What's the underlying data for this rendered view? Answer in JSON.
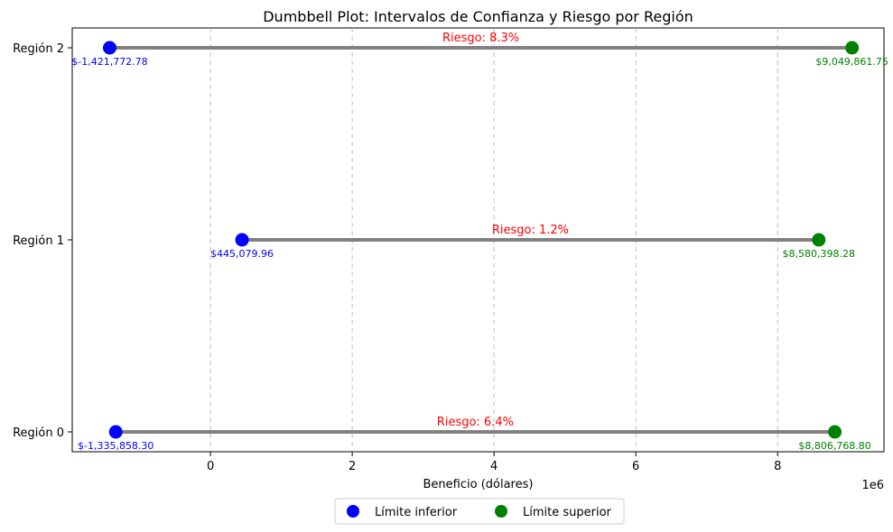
{
  "chart_data": {
    "type": "dumbbell",
    "title": "Dumbbell Plot: Intervalos de Confianza y Riesgo por Región",
    "xlabel": "Beneficio (dólares)",
    "ylabel": "",
    "x_scale_note": "1e6",
    "xlim": [
      -1.95,
      9.5
    ],
    "x_ticks": [
      {
        "value": 0,
        "label": "0"
      },
      {
        "value": 2,
        "label": "2"
      },
      {
        "value": 4,
        "label": "4"
      },
      {
        "value": 6,
        "label": "6"
      },
      {
        "value": 8,
        "label": "8"
      }
    ],
    "grid": "x-dashed",
    "categories": [
      "Región 0",
      "Región 1",
      "Región 2"
    ],
    "rows": [
      {
        "category": "Región 0",
        "lower": -1.3358583,
        "upper": 8.8067688,
        "lower_label": "$-1,335,858.30",
        "upper_label": "$8,806,768.80",
        "risk_label": "Riesgo: 6.4%"
      },
      {
        "category": "Región 1",
        "lower": 0.44507996,
        "upper": 8.58039828,
        "lower_label": "$445,079.96",
        "upper_label": "$8,580,398.28",
        "risk_label": "Riesgo: 1.2%"
      },
      {
        "category": "Región 2",
        "lower": -1.42177278,
        "upper": 9.04986175,
        "lower_label": "$-1,421,772.78",
        "upper_label": "$9,049,861.75",
        "risk_label": "Riesgo: 8.3%"
      }
    ],
    "series": [
      {
        "name": "Límite inferior",
        "color": "#0000ff"
      },
      {
        "name": "Límite superior",
        "color": "#008000"
      }
    ],
    "connector_color": "#808080",
    "risk_color": "#ff0000",
    "legend_position": "bottom-center"
  }
}
